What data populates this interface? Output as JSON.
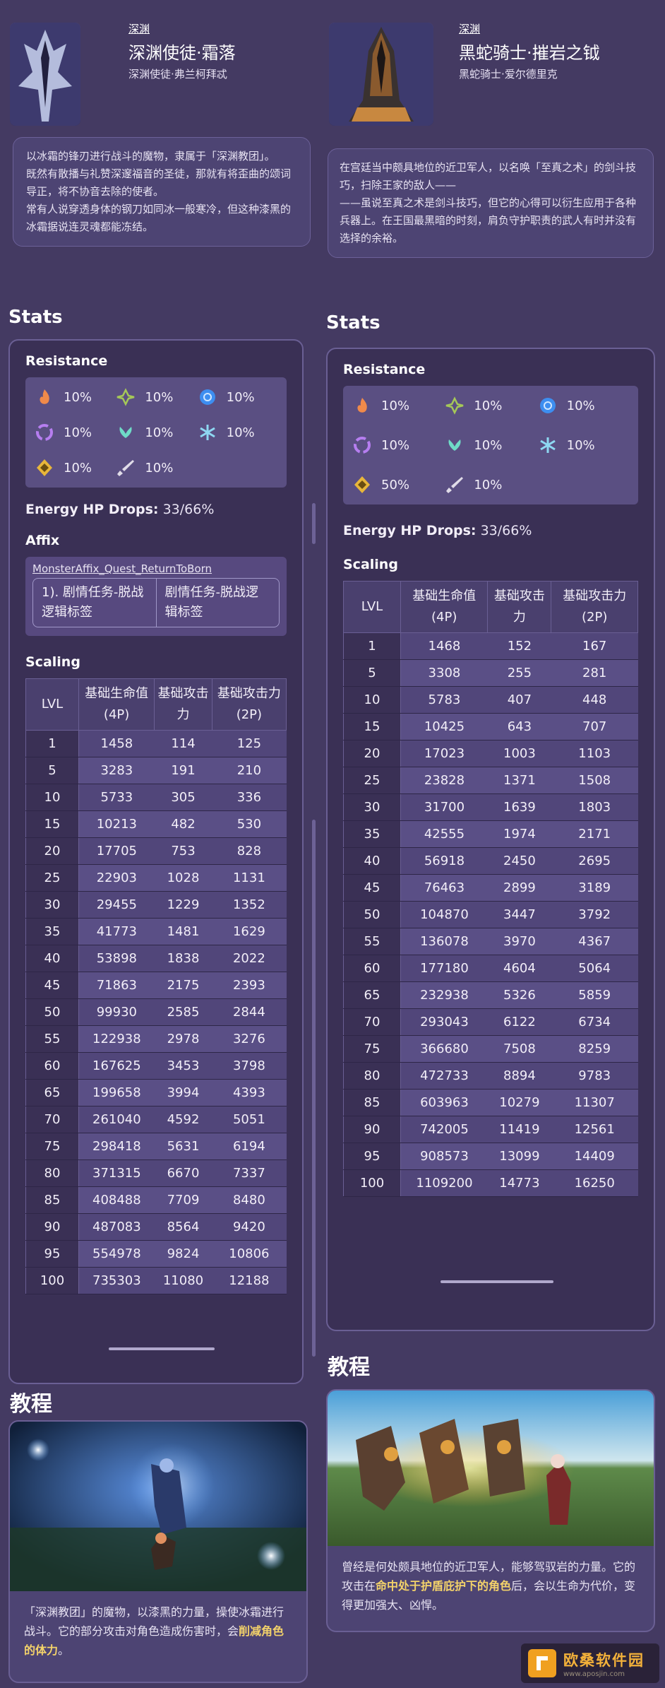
{
  "left": {
    "tag": "深渊",
    "name": "深渊使徒·霜落",
    "sub": "深渊使徒·弗兰柯拜忒",
    "desc": [
      "以冰霜的锋刃进行战斗的魔物，隶属于「深渊教团」。",
      "既然有散播与礼赞深邃福音的圣徒，那就有将歪曲的颂词导正，将不协音去除的使者。",
      "常有人说穿透身体的钢刀如同冰一般寒冷，但这种漆黑的冰霜据说连灵魂都能冻结。"
    ],
    "stats_title": "Stats",
    "resistance_label": "Resistance",
    "resistances": [
      {
        "element": "pyro-icon",
        "value": "10%"
      },
      {
        "element": "dendro-icon",
        "value": "10%"
      },
      {
        "element": "hydro-icon",
        "value": "10%"
      },
      {
        "element": "electro-icon",
        "value": "10%"
      },
      {
        "element": "anemo-icon",
        "value": "10%"
      },
      {
        "element": "cryo-icon",
        "value": "10%"
      },
      {
        "element": "geo-icon",
        "value": "10%"
      },
      {
        "element": "physical-icon",
        "value": "10%"
      }
    ],
    "energy_label": "Energy HP Drops:",
    "energy_value": "33/66%",
    "affix_label": "Affix",
    "affix_link": "MonsterAffix_Quest_ReturnToBorn",
    "affix_name": "1). 剧情任务-脱战逻辑标签",
    "affix_desc": "剧情任务-脱战逻辑标签",
    "scaling_label": "Scaling",
    "headers": [
      "LVL",
      "基础生命值(4P)",
      "基础攻击力",
      "基础攻击力 (2P)"
    ],
    "rows": [
      [
        "1",
        "1458",
        "114",
        "125"
      ],
      [
        "5",
        "3283",
        "191",
        "210"
      ],
      [
        "10",
        "5733",
        "305",
        "336"
      ],
      [
        "15",
        "10213",
        "482",
        "530"
      ],
      [
        "20",
        "17705",
        "753",
        "828"
      ],
      [
        "25",
        "22903",
        "1028",
        "1131"
      ],
      [
        "30",
        "29455",
        "1229",
        "1352"
      ],
      [
        "35",
        "41773",
        "1481",
        "1629"
      ],
      [
        "40",
        "53898",
        "1838",
        "2022"
      ],
      [
        "45",
        "71863",
        "2175",
        "2393"
      ],
      [
        "50",
        "99930",
        "2585",
        "2844"
      ],
      [
        "55",
        "122938",
        "2978",
        "3276"
      ],
      [
        "60",
        "167625",
        "3453",
        "3798"
      ],
      [
        "65",
        "199658",
        "3994",
        "4393"
      ],
      [
        "70",
        "261040",
        "4592",
        "5051"
      ],
      [
        "75",
        "298418",
        "5631",
        "6194"
      ],
      [
        "80",
        "371315",
        "6670",
        "7337"
      ],
      [
        "85",
        "408488",
        "7709",
        "8480"
      ],
      [
        "90",
        "487083",
        "8564",
        "9420"
      ],
      [
        "95",
        "554978",
        "9824",
        "10806"
      ],
      [
        "100",
        "735303",
        "11080",
        "12188"
      ]
    ],
    "tutorial_title": "教程",
    "tutorial_text_1": "「深渊教团」的魔物，以漆黑的力量，操使冰霜进行战斗。它的部分攻击对角色造成伤害时，会",
    "tutorial_hl_1": "削减角色的体力",
    "tutorial_text_2": "。"
  },
  "right": {
    "tag": "深渊",
    "name": "黑蛇骑士·摧岩之钺",
    "sub": "黑蛇骑士·爱尔德里克",
    "desc": [
      "在宫廷当中颇具地位的近卫军人，以名唤「至真之术」的剑斗技巧，扫除王家的敌人——",
      "——虽说至真之术是剑斗技巧，但它的心得可以衍生应用于各种兵器上。在王国最黑暗的时刻，肩负守护职责的武人有时并没有选择的余裕。"
    ],
    "stats_title": "Stats",
    "resistance_label": "Resistance",
    "resistances": [
      {
        "element": "pyro-icon",
        "value": "10%"
      },
      {
        "element": "dendro-icon",
        "value": "10%"
      },
      {
        "element": "hydro-icon",
        "value": "10%"
      },
      {
        "element": "electro-icon",
        "value": "10%"
      },
      {
        "element": "anemo-icon",
        "value": "10%"
      },
      {
        "element": "cryo-icon",
        "value": "10%"
      },
      {
        "element": "geo-icon",
        "value": "50%"
      },
      {
        "element": "physical-icon",
        "value": "10%"
      }
    ],
    "energy_label": "Energy HP Drops:",
    "energy_value": "33/66%",
    "scaling_label": "Scaling",
    "headers": [
      "LVL",
      "基础生命值(4P)",
      "基础攻击力",
      "基础攻击力 (2P)"
    ],
    "rows": [
      [
        "1",
        "1468",
        "152",
        "167"
      ],
      [
        "5",
        "3308",
        "255",
        "281"
      ],
      [
        "10",
        "5783",
        "407",
        "448"
      ],
      [
        "15",
        "10425",
        "643",
        "707"
      ],
      [
        "20",
        "17023",
        "1003",
        "1103"
      ],
      [
        "25",
        "23828",
        "1371",
        "1508"
      ],
      [
        "30",
        "31700",
        "1639",
        "1803"
      ],
      [
        "35",
        "42555",
        "1974",
        "2171"
      ],
      [
        "40",
        "56918",
        "2450",
        "2695"
      ],
      [
        "45",
        "76463",
        "2899",
        "3189"
      ],
      [
        "50",
        "104870",
        "3447",
        "3792"
      ],
      [
        "55",
        "136078",
        "3970",
        "4367"
      ],
      [
        "60",
        "177180",
        "4604",
        "5064"
      ],
      [
        "65",
        "232938",
        "5326",
        "5859"
      ],
      [
        "70",
        "293043",
        "6122",
        "6734"
      ],
      [
        "75",
        "366680",
        "7508",
        "8259"
      ],
      [
        "80",
        "472733",
        "8894",
        "9783"
      ],
      [
        "85",
        "603963",
        "10279",
        "11307"
      ],
      [
        "90",
        "742005",
        "11419",
        "12561"
      ],
      [
        "95",
        "908573",
        "13099",
        "14409"
      ],
      [
        "100",
        "1109200",
        "14773",
        "16250"
      ]
    ],
    "tutorial_title": "教程",
    "tutorial_text_1": "曾经是何处颇具地位的近卫军人，能够驾驭岩的力量。它的攻击在",
    "tutorial_hl_1": "命中处于护盾庇护下的角色",
    "tutorial_text_2": "后，会以生命为代价，变得更加强大、凶悍。"
  },
  "watermark": {
    "text": "欧桑软件园",
    "url": "www.aposjin.com"
  },
  "colors": {
    "page": "#443a62",
    "panel": "#3a3055",
    "highlight": "#f4d36a",
    "watermark": "#f3b13a"
  }
}
